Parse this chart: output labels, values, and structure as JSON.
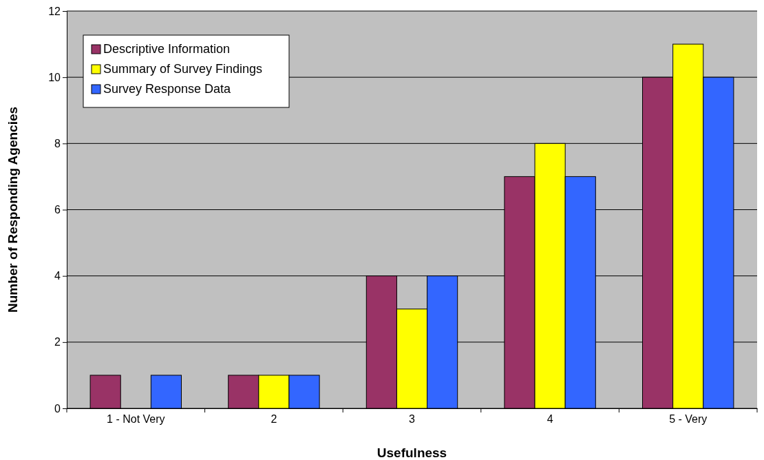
{
  "chart_data": {
    "type": "bar",
    "xlabel": "Usefulness",
    "ylabel": "Number of Responding Agencies",
    "categories": [
      "1 - Not Very",
      "2",
      "3",
      "4",
      "5 - Very"
    ],
    "series": [
      {
        "name": "Descriptive Information",
        "color": "#993366",
        "values": [
          1,
          1,
          4,
          7,
          10
        ]
      },
      {
        "name": "Summary of Survey Findings",
        "color": "#ffff00",
        "values": [
          0,
          1,
          3,
          8,
          11
        ]
      },
      {
        "name": "Survey Response Data",
        "color": "#3366ff",
        "values": [
          1,
          1,
          4,
          7,
          10
        ]
      }
    ],
    "ylim": [
      0,
      12
    ],
    "yticks": [
      0,
      2,
      4,
      6,
      8,
      10,
      12
    ],
    "grid": "y",
    "legend": "top left"
  }
}
